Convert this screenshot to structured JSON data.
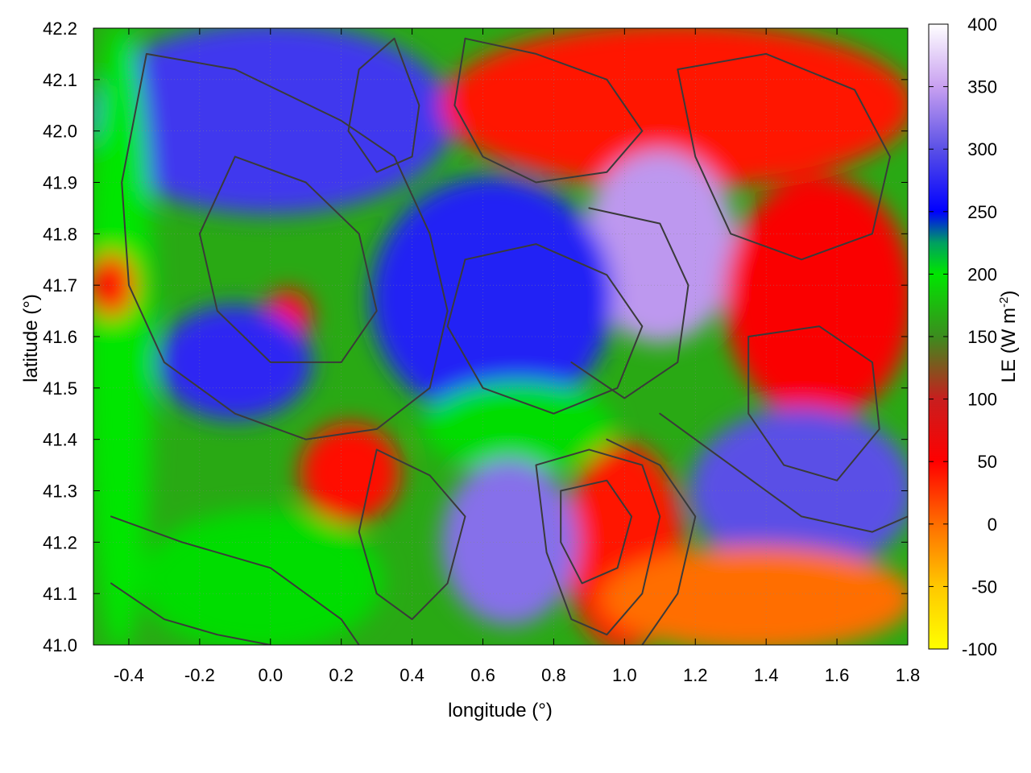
{
  "chart_data": {
    "type": "heatmap",
    "xlabel": "longitude (°)",
    "ylabel": "latitude (°)",
    "xlim": [
      -0.5,
      1.8
    ],
    "ylim": [
      41.0,
      42.2
    ],
    "x_ticks": [
      -0.4,
      -0.2,
      0.0,
      0.2,
      0.4,
      0.6,
      0.8,
      1.0,
      1.2,
      1.4,
      1.6,
      1.8
    ],
    "x_tick_labels": [
      "-0.4",
      "-0.2",
      "0.0",
      "0.2",
      "0.4",
      "0.6",
      "0.8",
      "1.0",
      "1.2",
      "1.4",
      "1.6",
      "1.8"
    ],
    "y_ticks": [
      41.0,
      41.1,
      41.2,
      41.3,
      41.4,
      41.5,
      41.6,
      41.7,
      41.8,
      41.9,
      42.0,
      42.1,
      42.2
    ],
    "y_tick_labels": [
      "41.0",
      "41.1",
      "41.2",
      "41.3",
      "41.4",
      "41.5",
      "41.6",
      "41.7",
      "41.8",
      "41.9",
      "42.0",
      "42.1",
      "42.2"
    ],
    "grid": true,
    "colorbar": {
      "label": "LE (W m",
      "label_superscript": "-2",
      "label_close": ")",
      "range": [
        -100,
        400
      ],
      "ticks": [
        -100,
        -50,
        0,
        50,
        100,
        150,
        200,
        250,
        300,
        350,
        400
      ],
      "tick_labels": [
        "-100",
        "-50",
        "0",
        "50",
        "100",
        "150",
        "200",
        "250",
        "300",
        "350",
        "400"
      ],
      "stops": [
        {
          "value": -100,
          "color": "#ffff00"
        },
        {
          "value": -50,
          "color": "#ffc800"
        },
        {
          "value": 0,
          "color": "#ff6e00"
        },
        {
          "value": 50,
          "color": "#ff0000"
        },
        {
          "value": 100,
          "color": "#c81e1e"
        },
        {
          "value": 150,
          "color": "#3c8c1e"
        },
        {
          "value": 200,
          "color": "#00e600"
        },
        {
          "value": 225,
          "color": "#00a060"
        },
        {
          "value": 250,
          "color": "#0000ff"
        },
        {
          "value": 300,
          "color": "#5a50e6"
        },
        {
          "value": 350,
          "color": "#c8a0f0"
        },
        {
          "value": 400,
          "color": "#ffffff"
        }
      ]
    },
    "regions": [
      {
        "x": [
          -0.5,
          0.5
        ],
        "y": [
          41.85,
          42.2
        ],
        "le": 285
      },
      {
        "x": [
          -0.5,
          -0.35
        ],
        "y": [
          41.0,
          42.2
        ],
        "le": 200
      },
      {
        "x": [
          -0.35,
          0.3
        ],
        "y": [
          41.0,
          41.25
        ],
        "le": 195
      },
      {
        "x": [
          0.5,
          1.8
        ],
        "y": [
          41.9,
          42.2
        ],
        "le": 40
      },
      {
        "x": [
          0.9,
          1.3
        ],
        "y": [
          41.6,
          41.95
        ],
        "le": 345
      },
      {
        "x": [
          1.3,
          1.8
        ],
        "y": [
          41.45,
          41.9
        ],
        "le": 55
      },
      {
        "x": [
          0.3,
          0.95
        ],
        "y": [
          41.45,
          41.9
        ],
        "le": 270
      },
      {
        "x": [
          0.45,
          0.95
        ],
        "y": [
          41.35,
          41.5
        ],
        "le": 195
      },
      {
        "x": [
          0.1,
          0.35
        ],
        "y": [
          41.25,
          41.42
        ],
        "le": 45
      },
      {
        "x": [
          0.85,
          1.15
        ],
        "y": [
          41.0,
          41.38
        ],
        "le": 40
      },
      {
        "x": [
          0.5,
          0.85
        ],
        "y": [
          41.05,
          41.35
        ],
        "le": 320
      },
      {
        "x": [
          1.2,
          1.8
        ],
        "y": [
          41.15,
          41.45
        ],
        "le": 300
      },
      {
        "x": [
          0.95,
          1.8
        ],
        "y": [
          41.0,
          41.18
        ],
        "le": 0
      },
      {
        "x": [
          -0.5,
          -0.4
        ],
        "y": [
          41.65,
          41.75
        ],
        "le": 45
      },
      {
        "x": [
          0.0,
          0.1
        ],
        "y": [
          41.6,
          41.68
        ],
        "le": 45
      },
      {
        "x": [
          -0.3,
          0.1
        ],
        "y": [
          41.45,
          41.65
        ],
        "le": 275
      }
    ],
    "contours": [
      [
        [
          -0.35,
          42.15
        ],
        [
          -0.1,
          42.12
        ],
        [
          0.2,
          42.02
        ],
        [
          0.35,
          41.95
        ],
        [
          0.45,
          41.8
        ],
        [
          0.5,
          41.65
        ],
        [
          0.45,
          41.5
        ],
        [
          0.3,
          41.42
        ],
        [
          0.1,
          41.4
        ],
        [
          -0.1,
          41.45
        ],
        [
          -0.3,
          41.55
        ],
        [
          -0.4,
          41.7
        ],
        [
          -0.42,
          41.9
        ],
        [
          -0.35,
          42.15
        ]
      ],
      [
        [
          -0.1,
          41.95
        ],
        [
          0.1,
          41.9
        ],
        [
          0.25,
          41.8
        ],
        [
          0.3,
          41.65
        ],
        [
          0.2,
          41.55
        ],
        [
          0.0,
          41.55
        ],
        [
          -0.15,
          41.65
        ],
        [
          -0.2,
          41.8
        ],
        [
          -0.1,
          41.95
        ]
      ],
      [
        [
          0.55,
          41.75
        ],
        [
          0.75,
          41.78
        ],
        [
          0.95,
          41.72
        ],
        [
          1.05,
          41.62
        ],
        [
          0.98,
          41.5
        ],
        [
          0.8,
          41.45
        ],
        [
          0.6,
          41.5
        ],
        [
          0.5,
          41.62
        ],
        [
          0.55,
          41.75
        ]
      ],
      [
        [
          0.9,
          41.85
        ],
        [
          1.1,
          41.82
        ],
        [
          1.18,
          41.7
        ],
        [
          1.15,
          41.55
        ],
        [
          1.0,
          41.48
        ],
        [
          0.85,
          41.55
        ]
      ],
      [
        [
          0.75,
          41.35
        ],
        [
          0.9,
          41.38
        ],
        [
          1.05,
          41.35
        ],
        [
          1.1,
          41.25
        ],
        [
          1.05,
          41.1
        ],
        [
          0.95,
          41.02
        ],
        [
          0.85,
          41.05
        ],
        [
          0.78,
          41.18
        ],
        [
          0.75,
          41.35
        ]
      ],
      [
        [
          0.82,
          41.3
        ],
        [
          0.95,
          41.32
        ],
        [
          1.02,
          41.25
        ],
        [
          0.98,
          41.15
        ],
        [
          0.88,
          41.12
        ],
        [
          0.82,
          41.2
        ],
        [
          0.82,
          41.3
        ]
      ],
      [
        [
          0.3,
          41.38
        ],
        [
          0.45,
          41.33
        ],
        [
          0.55,
          41.25
        ],
        [
          0.5,
          41.12
        ],
        [
          0.4,
          41.05
        ],
        [
          0.3,
          41.1
        ],
        [
          0.25,
          41.22
        ],
        [
          0.3,
          41.38
        ]
      ],
      [
        [
          0.55,
          42.18
        ],
        [
          0.75,
          42.15
        ],
        [
          0.95,
          42.1
        ],
        [
          1.05,
          42.0
        ],
        [
          0.95,
          41.92
        ],
        [
          0.75,
          41.9
        ],
        [
          0.6,
          41.95
        ],
        [
          0.52,
          42.05
        ],
        [
          0.55,
          42.18
        ]
      ],
      [
        [
          1.15,
          42.12
        ],
        [
          1.4,
          42.15
        ],
        [
          1.65,
          42.08
        ],
        [
          1.75,
          41.95
        ],
        [
          1.7,
          41.8
        ],
        [
          1.5,
          41.75
        ],
        [
          1.3,
          41.8
        ],
        [
          1.2,
          41.95
        ],
        [
          1.15,
          42.12
        ]
      ],
      [
        [
          1.35,
          41.6
        ],
        [
          1.55,
          41.62
        ],
        [
          1.7,
          41.55
        ],
        [
          1.72,
          41.42
        ],
        [
          1.6,
          41.32
        ],
        [
          1.45,
          41.35
        ],
        [
          1.35,
          41.45
        ],
        [
          1.35,
          41.6
        ]
      ],
      [
        [
          -0.45,
          41.25
        ],
        [
          -0.25,
          41.2
        ],
        [
          0.0,
          41.15
        ],
        [
          0.2,
          41.05
        ],
        [
          0.25,
          41.0
        ]
      ],
      [
        [
          -0.45,
          41.12
        ],
        [
          -0.3,
          41.05
        ],
        [
          -0.15,
          41.02
        ],
        [
          0.0,
          41.0
        ]
      ],
      [
        [
          1.1,
          41.45
        ],
        [
          1.3,
          41.35
        ],
        [
          1.5,
          41.25
        ],
        [
          1.7,
          41.22
        ],
        [
          1.8,
          41.25
        ]
      ],
      [
        [
          0.95,
          41.4
        ],
        [
          1.1,
          41.35
        ],
        [
          1.2,
          41.25
        ],
        [
          1.15,
          41.1
        ],
        [
          1.05,
          41.0
        ]
      ],
      [
        [
          0.35,
          42.18
        ],
        [
          0.42,
          42.05
        ],
        [
          0.4,
          41.95
        ],
        [
          0.3,
          41.92
        ],
        [
          0.22,
          42.0
        ],
        [
          0.25,
          42.12
        ],
        [
          0.35,
          42.18
        ]
      ]
    ]
  }
}
